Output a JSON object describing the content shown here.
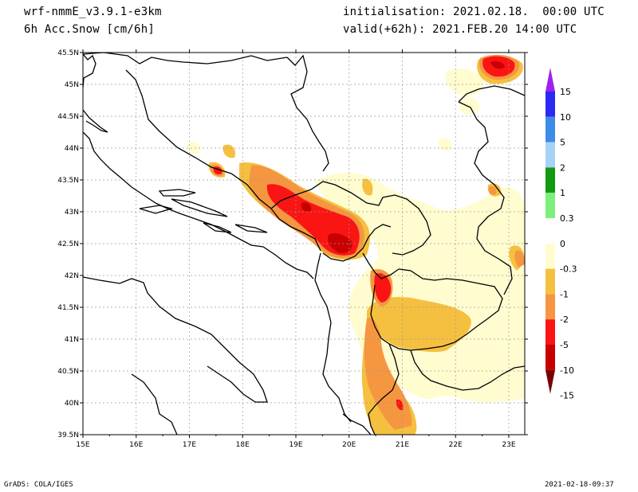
{
  "header": {
    "model": "wrf-nmmE_v3.9.1-e3km",
    "variable": "6h Acc.Snow [cm/6h]",
    "init": "initialisation: 2021.02.18.  00:00 UTC",
    "valid": "valid(+62h): 2021.FEB.20 14:00 UTC"
  },
  "map": {
    "lon_labels": [
      "15E",
      "16E",
      "17E",
      "18E",
      "19E",
      "20E",
      "21E",
      "22E",
      "23E"
    ],
    "lat_labels": [
      "45.5N",
      "45N",
      "44.5N",
      "44N",
      "43.5N",
      "43N",
      "42.5N",
      "42N",
      "41.5N",
      "41N",
      "40.5N",
      "40N",
      "39.5N"
    ],
    "lon_range": [
      15,
      23.3
    ],
    "lat_range": [
      39.5,
      45.5
    ]
  },
  "legend": {
    "labels": [
      "15",
      "10",
      "5",
      "2",
      "1",
      "0.3",
      "0",
      "-0.3",
      "-1",
      "-2",
      "-5",
      "-10",
      "-15"
    ],
    "colors": [
      "#a020f0",
      "#2a2af2",
      "#3c8ce6",
      "#a6d2f5",
      "#139a13",
      "#7cef7c",
      "#ffffff",
      "#fffcd0",
      "#f5c040",
      "#f59640",
      "#fa1414",
      "#c80000",
      "#7a0000"
    ]
  },
  "footer": {
    "credit": "GrADS: COLA/IGES",
    "timestamp": "2021-02-18-09:37"
  }
}
